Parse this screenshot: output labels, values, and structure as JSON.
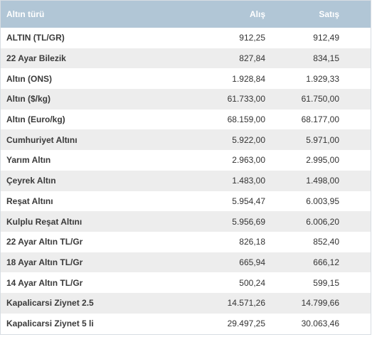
{
  "table": {
    "headers": {
      "name": "Altın türü",
      "buy": "Alış",
      "sell": "Satış"
    },
    "rows": [
      {
        "name": "ALTIN (TL/GR)",
        "buy": "912,25",
        "sell": "912,49"
      },
      {
        "name": "22 Ayar Bilezik",
        "buy": "827,84",
        "sell": "834,15"
      },
      {
        "name": "Altın (ONS)",
        "buy": "1.928,84",
        "sell": "1.929,33"
      },
      {
        "name": "Altın ($/kg)",
        "buy": "61.733,00",
        "sell": "61.750,00"
      },
      {
        "name": "Altın (Euro/kg)",
        "buy": "68.159,00",
        "sell": "68.177,00"
      },
      {
        "name": "Cumhuriyet Altını",
        "buy": "5.922,00",
        "sell": "5.971,00"
      },
      {
        "name": "Yarım Altın",
        "buy": "2.963,00",
        "sell": "2.995,00"
      },
      {
        "name": "Çeyrek Altın",
        "buy": "1.483,00",
        "sell": "1.498,00"
      },
      {
        "name": "Reşat Altını",
        "buy": "5.954,47",
        "sell": "6.003,95"
      },
      {
        "name": "Kulplu Reşat Altını",
        "buy": "5.956,69",
        "sell": "6.006,20"
      },
      {
        "name": "22 Ayar Altın TL/Gr",
        "buy": "826,18",
        "sell": "852,40"
      },
      {
        "name": "18 Ayar Altın TL/Gr",
        "buy": "665,94",
        "sell": "666,12"
      },
      {
        "name": "14 Ayar Altın TL/Gr",
        "buy": "500,24",
        "sell": "599,15"
      },
      {
        "name": "Kapalicarsi Ziynet 2.5",
        "buy": "14.571,26",
        "sell": "14.799,66"
      },
      {
        "name": "Kapalicarsi Ziynet 5 li",
        "buy": "29.497,25",
        "sell": "30.063,46"
      }
    ]
  },
  "colors": {
    "header_bg": "#b1c6d6",
    "header_text": "#ffffff",
    "row_alt_bg": "#ededed",
    "row_bg": "#ffffff"
  }
}
